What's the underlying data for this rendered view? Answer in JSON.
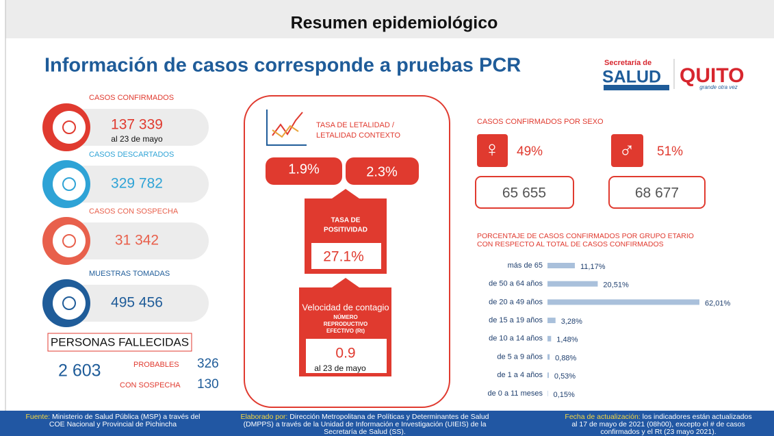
{
  "header": {
    "title": "Resumen epidemiológico"
  },
  "main_title": "Información de casos corresponde a pruebas PCR",
  "logo": {
    "line1": "Secretaría de",
    "line2": "SALUD",
    "line3": "QUITO",
    "tagline": "grande otra vez"
  },
  "cards": [
    {
      "label": "CASOS CONFIRMADOS",
      "value": "137 339",
      "note": "al 23 de mayo"
    },
    {
      "label": "CASOS DESCARTADOS",
      "value": "329 782"
    },
    {
      "label": "CASOS CON SOSPECHA",
      "value": "31 342"
    },
    {
      "label": "MUESTRAS TOMADAS",
      "value": "495 456"
    }
  ],
  "deaths": {
    "title": "PERSONAS FALLECIDAS",
    "total": "2 603",
    "probables_label": "PROBABLES",
    "probables": "326",
    "suspect_label": "CON SOSPECHA",
    "suspect": "130"
  },
  "lethality": {
    "title_lines": [
      "TASA DE LETALIDAD /",
      "LETALIDAD CONTEXTO"
    ],
    "values": [
      "1.9%",
      "2.3%"
    ]
  },
  "positivity": {
    "title_lines": [
      "TASA DE",
      "POSITIVIDAD"
    ],
    "value": "27.1%"
  },
  "rt": {
    "title": "Velocidad de contagio",
    "subtitle_lines": [
      "NÚMERO",
      "REPRODUCTIVO",
      "EFECTIVO (Rt)"
    ],
    "value": "0.9",
    "note": "al 23 de mayo"
  },
  "sex": {
    "title": "CASOS CONFIRMADOS POR SEXO",
    "female": {
      "percent": "49%",
      "count": "65 655"
    },
    "male": {
      "percent": "51%",
      "count": "68 677"
    }
  },
  "chart_data": {
    "type": "bar",
    "title_lines": [
      "PORCENTAJE DE CASOS CONFIRMADOS POR GRUPO ETARIO",
      "CON RESPECTO AL TOTAL DE CASOS CONFIRMADOS"
    ],
    "categories": [
      "más de 65",
      "de 50 a 64 años",
      "de 20 a 49 años",
      "de 15 a 19 años",
      "de 10 a 14 años",
      "de 5 a 9 años",
      "de 1 a 4 años",
      "de 0 a 11 meses"
    ],
    "values": [
      11.17,
      20.51,
      62.01,
      3.28,
      1.48,
      0.88,
      0.53,
      0.15
    ],
    "value_labels": [
      "11,17%",
      "20,51%",
      "62,01%",
      "3,28%",
      "1,48%",
      "0,88%",
      "0,53%",
      "0,15%"
    ],
    "color": "#a9c0db"
  },
  "footer": [
    {
      "label": "Fuente:",
      "lines": [
        " Ministerio de Salud Pública (MSP) a través del",
        "COE Nacional y Provincial de Pichincha"
      ]
    },
    {
      "label": "Elaborado por:",
      "lines": [
        " Dirección Metropolitana de Políticas y Determinantes de Salud",
        "(DMPPS) a través de la Unidad de Información e Investigación (UIEIS) de la",
        "Secretaría de Salud (SS)."
      ]
    },
    {
      "label": "Fecha de actualización:",
      "lines": [
        " los indicadores están actualizados",
        "al 17 de mayo de 2021 (08h00), excepto el # de casos",
        "confirmados y el Rt (23 mayo 2021)."
      ]
    }
  ]
}
